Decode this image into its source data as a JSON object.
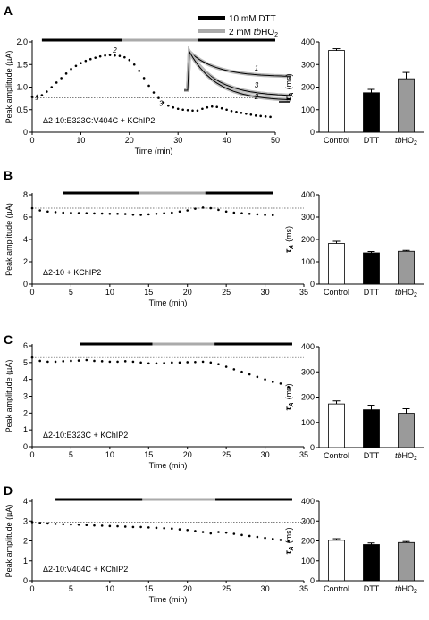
{
  "legend": [
    {
      "label": "10 mM DTT",
      "color": "#000000"
    },
    {
      "label_pre": "2 mM ",
      "label_em": "tb",
      "label_post": "HO",
      "label_sub": "2",
      "color": "#aaaaaa"
    }
  ],
  "chart_data": [
    {
      "type": "line",
      "panel": "A",
      "xlabel": "Time (min)",
      "ylabel": "Peak amplitude (µA)",
      "xlim": [
        0,
        50
      ],
      "ylim": [
        0,
        2.0
      ],
      "xticks": [
        0,
        10,
        20,
        30,
        40,
        50
      ],
      "yticks": [
        0,
        0.5,
        1.0,
        1.5,
        2.0
      ],
      "yticklabels": [
        "0",
        "0.5",
        "1.0",
        "1.5",
        "2.0"
      ],
      "sample_label": "Δ2-10:E323C:V404C + KChIP2",
      "baseline": 0.76,
      "treatments": [
        {
          "agent": "DTT",
          "start": 2,
          "end": 18.5
        },
        {
          "agent": "tbHO2",
          "start": 18.5,
          "end": 34
        },
        {
          "agent": "DTT",
          "start": 34,
          "end": 50
        }
      ],
      "series": [
        {
          "x": [
            0,
            1,
            2,
            3,
            4,
            5,
            6,
            7,
            8,
            9,
            10,
            11,
            12,
            13,
            14,
            15,
            16,
            17,
            18,
            19,
            20,
            21,
            22,
            23,
            24,
            25,
            26,
            27,
            28,
            29,
            30,
            31,
            32,
            33,
            34,
            35,
            36,
            37,
            38,
            39,
            40,
            41,
            42,
            43,
            44,
            45,
            46,
            47,
            48,
            49
          ],
          "y": [
            0.78,
            0.79,
            0.82,
            0.9,
            1.0,
            1.1,
            1.2,
            1.3,
            1.4,
            1.47,
            1.53,
            1.58,
            1.62,
            1.65,
            1.68,
            1.7,
            1.71,
            1.7,
            1.69,
            1.66,
            1.6,
            1.5,
            1.36,
            1.2,
            1.03,
            0.88,
            0.76,
            0.66,
            0.59,
            0.55,
            0.52,
            0.5,
            0.49,
            0.48,
            0.48,
            0.52,
            0.55,
            0.57,
            0.56,
            0.53,
            0.5,
            0.47,
            0.45,
            0.43,
            0.41,
            0.39,
            0.37,
            0.36,
            0.35,
            0.34
          ]
        }
      ],
      "trace_labels": [
        {
          "text": "1",
          "x": 1,
          "y": 0.72
        },
        {
          "text": "2",
          "x": 17,
          "y": 1.76
        },
        {
          "text": "3",
          "x": 26.5,
          "y": 0.58
        }
      ],
      "inset_labels": [
        "1",
        "3",
        "2"
      ],
      "bars": {
        "categories": [
          "Control",
          "DTT",
          "tbHO2"
        ],
        "values": [
          362,
          175,
          237
        ],
        "errors": [
          8,
          15,
          28
        ],
        "colors": [
          "#ffffff",
          "#000000",
          "#9a9a9a"
        ],
        "ylim": [
          0,
          400
        ],
        "yticks": [
          0,
          100,
          200,
          300,
          400
        ],
        "ylabel_symbol": "τ",
        "ylabel_sub": "A",
        "ylabel_unit": "(ms)"
      }
    },
    {
      "type": "line",
      "panel": "B",
      "xlabel": "Time (min)",
      "ylabel": "Peak amplitude (µA)",
      "xlim": [
        0,
        35
      ],
      "ylim": [
        0,
        8
      ],
      "xticks": [
        0,
        5,
        10,
        15,
        20,
        25,
        30,
        35
      ],
      "yticks": [
        0,
        2,
        4,
        6,
        8
      ],
      "yticklabels": [
        "0",
        "2",
        "4",
        "6",
        "8"
      ],
      "sample_label": "Δ2-10 + KChIP2",
      "baseline": 6.8,
      "treatments": [
        {
          "agent": "DTT",
          "start": 4,
          "end": 13.8
        },
        {
          "agent": "tbHO2",
          "start": 13.8,
          "end": 22.3
        },
        {
          "agent": "DTT",
          "start": 22.3,
          "end": 31
        }
      ],
      "series": [
        {
          "x": [
            0,
            1,
            2,
            3,
            4,
            5,
            6,
            7,
            8,
            9,
            10,
            11,
            12,
            13,
            14,
            15,
            16,
            17,
            18,
            19,
            20,
            21,
            22,
            23,
            24,
            25,
            26,
            27,
            28,
            29,
            30,
            31
          ],
          "y": [
            6.8,
            6.6,
            6.5,
            6.45,
            6.4,
            6.38,
            6.36,
            6.35,
            6.33,
            6.32,
            6.3,
            6.3,
            6.28,
            6.22,
            6.2,
            6.25,
            6.3,
            6.35,
            6.4,
            6.5,
            6.6,
            6.75,
            6.85,
            6.8,
            6.65,
            6.5,
            6.4,
            6.35,
            6.3,
            6.25,
            6.2,
            6.18
          ]
        }
      ],
      "bars": {
        "categories": [
          "Control",
          "DTT",
          "tbHO2"
        ],
        "values": [
          182,
          140,
          147
        ],
        "errors": [
          10,
          6,
          4
        ],
        "colors": [
          "#ffffff",
          "#000000",
          "#9a9a9a"
        ],
        "ylim": [
          0,
          400
        ],
        "yticks": [
          0,
          100,
          200,
          300,
          400
        ],
        "ylabel_symbol": "τ",
        "ylabel_sub": "A",
        "ylabel_unit": "(ms)"
      }
    },
    {
      "type": "line",
      "panel": "C",
      "xlabel": "Time (min)",
      "ylabel": "Peak amplitude (µA)",
      "xlim": [
        0,
        35
      ],
      "ylim": [
        0,
        6
      ],
      "xticks": [
        0,
        5,
        10,
        15,
        20,
        25,
        30,
        35
      ],
      "yticks": [
        0,
        1,
        2,
        3,
        4,
        5,
        6
      ],
      "yticklabels": [
        "0",
        "1",
        "2",
        "3",
        "4",
        "5",
        "6"
      ],
      "sample_label": "Δ2-10:E323C  +  KChIP2",
      "baseline": 5.3,
      "treatments": [
        {
          "agent": "DTT",
          "start": 6.2,
          "end": 15.5
        },
        {
          "agent": "tbHO2",
          "start": 15.5,
          "end": 23.5
        },
        {
          "agent": "DTT",
          "start": 23.5,
          "end": 33.5
        }
      ],
      "series": [
        {
          "x": [
            0,
            1,
            2,
            3,
            4,
            5,
            6,
            7,
            8,
            9,
            10,
            11,
            12,
            13,
            14,
            15,
            16,
            17,
            18,
            19,
            20,
            21,
            22,
            23,
            24,
            25,
            26,
            27,
            28,
            29,
            30,
            31,
            32,
            33
          ],
          "y": [
            5.3,
            5.1,
            5.05,
            5.05,
            5.08,
            5.1,
            5.12,
            5.15,
            5.1,
            5.08,
            5.05,
            5.05,
            5.08,
            5.05,
            5.0,
            4.95,
            4.95,
            4.97,
            5.0,
            5.0,
            5.02,
            5.03,
            5.05,
            5.0,
            4.9,
            4.75,
            4.6,
            4.45,
            4.3,
            4.15,
            4.0,
            3.85,
            3.75,
            3.55
          ]
        }
      ],
      "bars": {
        "categories": [
          "Control",
          "DTT",
          "tbHO2"
        ],
        "values": [
          173,
          150,
          136
        ],
        "errors": [
          12,
          18,
          18
        ],
        "colors": [
          "#ffffff",
          "#000000",
          "#9a9a9a"
        ],
        "ylim": [
          0,
          400
        ],
        "yticks": [
          0,
          100,
          200,
          300,
          400
        ],
        "ylabel_symbol": "τ",
        "ylabel_sub": "A",
        "ylabel_unit": "(ms)"
      }
    },
    {
      "type": "line",
      "panel": "D",
      "xlabel": "Time (min)",
      "ylabel": "Peak amplitude (µA)",
      "xlim": [
        0,
        35
      ],
      "ylim": [
        0,
        4
      ],
      "xticks": [
        0,
        5,
        10,
        15,
        20,
        25,
        30,
        35
      ],
      "yticks": [
        0,
        1,
        2,
        3,
        4
      ],
      "yticklabels": [
        "0",
        "1",
        "2",
        "3",
        "4"
      ],
      "sample_label": "Δ2-10:V404C  +  KChIP2",
      "baseline": 2.95,
      "treatments": [
        {
          "agent": "DTT",
          "start": 3,
          "end": 14.2
        },
        {
          "agent": "tbHO2",
          "start": 14.2,
          "end": 23.6
        },
        {
          "agent": "DTT",
          "start": 23.6,
          "end": 33.5
        }
      ],
      "series": [
        {
          "x": [
            0,
            1,
            2,
            3,
            4,
            5,
            6,
            7,
            8,
            9,
            10,
            11,
            12,
            13,
            14,
            15,
            16,
            17,
            18,
            19,
            20,
            21,
            22,
            23,
            24,
            25,
            26,
            27,
            28,
            29,
            30,
            31,
            32,
            33
          ],
          "y": [
            2.95,
            2.9,
            2.88,
            2.86,
            2.84,
            2.83,
            2.82,
            2.8,
            2.78,
            2.77,
            2.75,
            2.74,
            2.72,
            2.7,
            2.7,
            2.68,
            2.66,
            2.64,
            2.62,
            2.58,
            2.55,
            2.5,
            2.45,
            2.38,
            2.45,
            2.42,
            2.36,
            2.3,
            2.25,
            2.2,
            2.15,
            2.1,
            2.05,
            1.98
          ]
        }
      ],
      "bars": {
        "categories": [
          "Control",
          "DTT",
          "tbHO2"
        ],
        "values": [
          203,
          182,
          192
        ],
        "errors": [
          8,
          8,
          5
        ],
        "colors": [
          "#ffffff",
          "#000000",
          "#9a9a9a"
        ],
        "ylim": [
          0,
          400
        ],
        "yticks": [
          0,
          100,
          200,
          300,
          400
        ],
        "ylabel_symbol": "τ",
        "ylabel_sub": "A",
        "ylabel_unit": "(ms)"
      }
    }
  ]
}
